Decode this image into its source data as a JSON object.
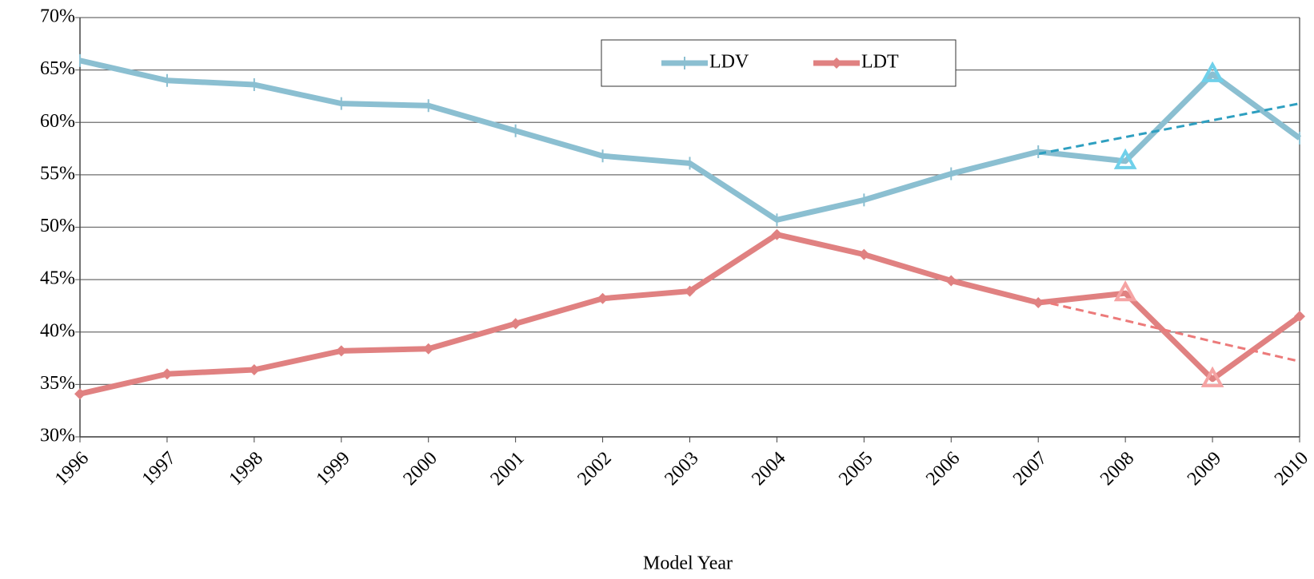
{
  "chart_data": {
    "type": "line",
    "x_label": "Model Year",
    "categories": [
      "1996",
      "1997",
      "1998",
      "1999",
      "2000",
      "2001",
      "2002",
      "2003",
      "2004",
      "2005",
      "2006",
      "2007",
      "2008",
      "2009",
      "2010"
    ],
    "series": [
      {
        "name": "LDV",
        "color": "#8bbfd1",
        "marker": "dash",
        "highlight_color": "#6fd0ea",
        "trend_color": "#2e9fc0",
        "values": [
          65.9,
          64.0,
          63.6,
          61.8,
          61.6,
          59.2,
          56.8,
          56.1,
          50.7,
          52.6,
          55.1,
          57.2,
          56.3,
          64.6,
          58.5
        ],
        "trend_values": [
          null,
          null,
          null,
          null,
          null,
          null,
          null,
          null,
          null,
          null,
          null,
          57.0,
          58.6,
          60.2,
          61.8
        ]
      },
      {
        "name": "LDT",
        "color": "#e08181",
        "marker": "diamond",
        "highlight_color": "#f5a3a3",
        "trend_color": "#ec7a7a",
        "values": [
          34.1,
          36.0,
          36.4,
          38.2,
          38.4,
          40.8,
          43.2,
          43.9,
          49.3,
          47.4,
          44.9,
          42.8,
          43.7,
          35.5,
          41.5
        ],
        "trend_values": [
          null,
          null,
          null,
          null,
          null,
          null,
          null,
          null,
          null,
          null,
          null,
          43.0,
          41.1,
          39.1,
          37.2
        ]
      }
    ],
    "highlight_indices": [
      12,
      13
    ],
    "ylim": [
      30,
      70
    ],
    "yticks": [
      {
        "value": 30,
        "label": "30%"
      },
      {
        "value": 35,
        "label": "35%"
      },
      {
        "value": 40,
        "label": "40%"
      },
      {
        "value": 45,
        "label": "45%"
      },
      {
        "value": 50,
        "label": "50%"
      },
      {
        "value": 55,
        "label": "55%"
      },
      {
        "value": 60,
        "label": "60%"
      },
      {
        "value": 65,
        "label": "65%"
      },
      {
        "value": 70,
        "label": "70%"
      }
    ],
    "grid": true,
    "legend": "top-center"
  }
}
